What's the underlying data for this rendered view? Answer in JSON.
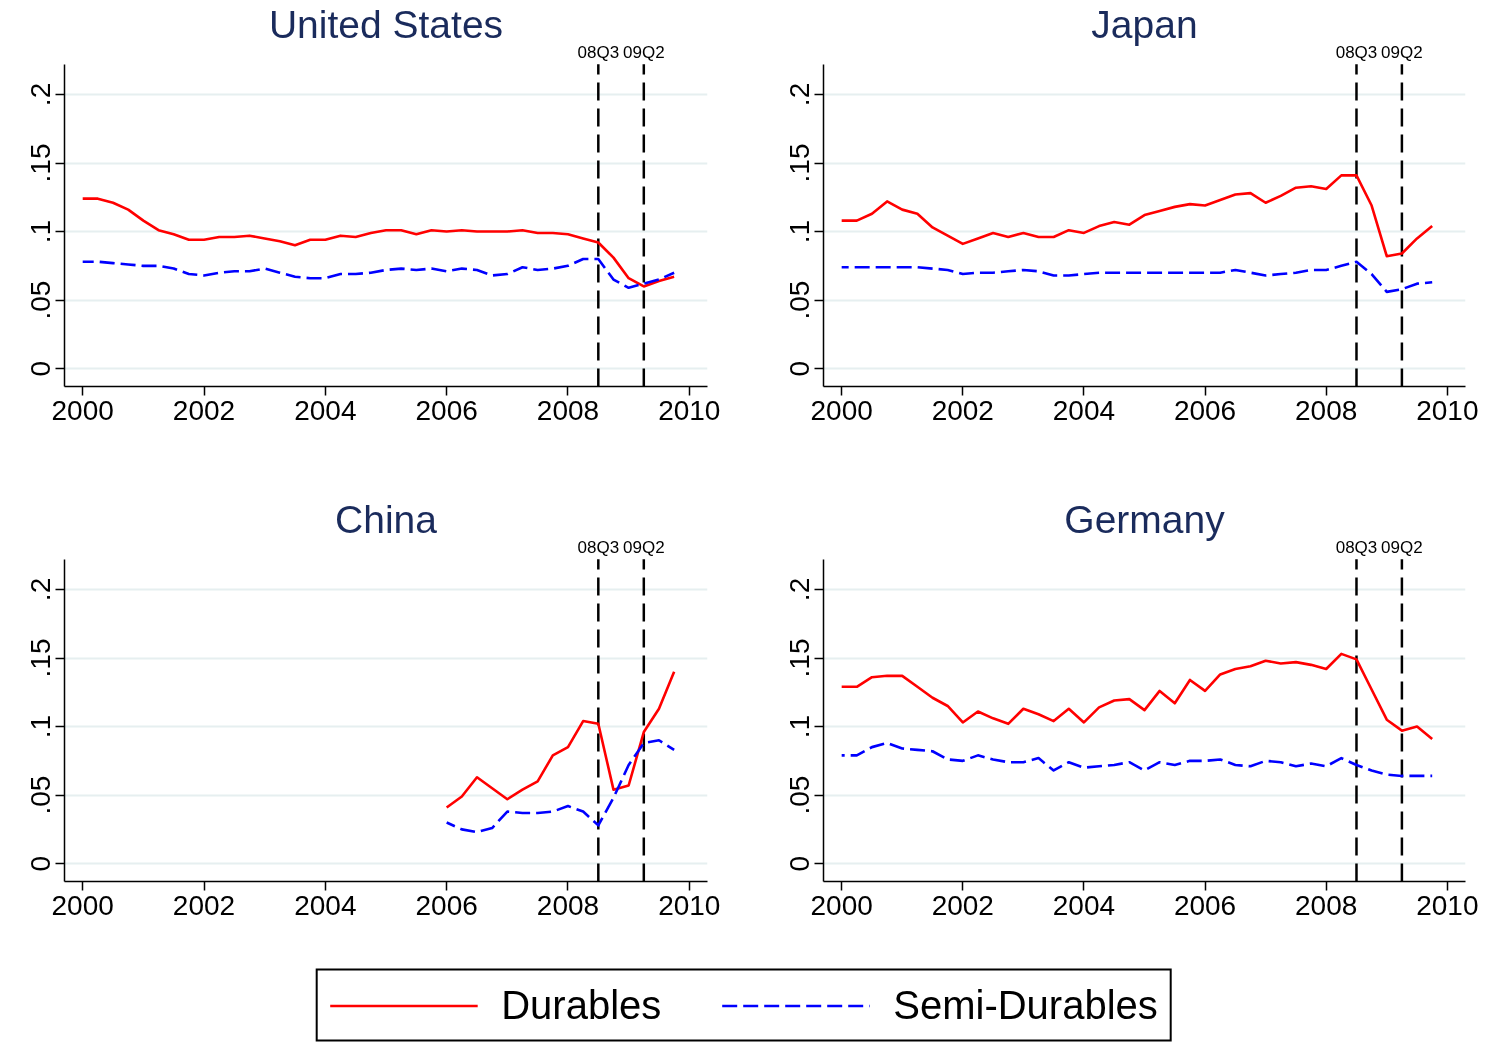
{
  "chart_data": [
    {
      "type": "line",
      "title": "United States",
      "x": [
        2000,
        2000.25,
        2000.5,
        2000.75,
        2001,
        2001.25,
        2001.5,
        2001.75,
        2002,
        2002.25,
        2002.5,
        2002.75,
        2003,
        2003.25,
        2003.5,
        2003.75,
        2004,
        2004.25,
        2004.5,
        2004.75,
        2005,
        2005.25,
        2005.5,
        2005.75,
        2006,
        2006.25,
        2006.5,
        2006.75,
        2007,
        2007.25,
        2007.5,
        2007.75,
        2008,
        2008.25,
        2008.5,
        2008.75,
        2009,
        2009.25,
        2009.5,
        2009.75
      ],
      "series": [
        {
          "color": "#ff0000",
          "line_style": "solid",
          "values": [
            0.124,
            0.124,
            0.121,
            0.116,
            0.108,
            0.101,
            0.098,
            0.094,
            0.094,
            0.096,
            0.096,
            0.097,
            0.095,
            0.093,
            0.09,
            0.094,
            0.094,
            0.097,
            0.096,
            0.099,
            0.101,
            0.101,
            0.098,
            0.101,
            0.1,
            0.101,
            0.1,
            0.1,
            0.1,
            0.101,
            0.099,
            0.099,
            0.098,
            0.095,
            0.092,
            0.081,
            0.066,
            0.06,
            0.064,
            0.067
          ]
        },
        {
          "color": "#0000ff",
          "line_style": "dashed",
          "values": [
            0.078,
            0.078,
            0.077,
            0.076,
            0.075,
            0.075,
            0.073,
            0.069,
            0.068,
            0.07,
            0.071,
            0.071,
            0.073,
            0.07,
            0.067,
            0.066,
            0.066,
            0.069,
            0.069,
            0.07,
            0.072,
            0.073,
            0.072,
            0.073,
            0.071,
            0.073,
            0.072,
            0.068,
            0.069,
            0.074,
            0.072,
            0.073,
            0.075,
            0.08,
            0.08,
            0.065,
            0.059,
            0.062,
            0.065,
            0.07
          ]
        }
      ],
      "xlim": [
        1999.7,
        2010.3
      ],
      "xticks": [
        2000,
        2002,
        2004,
        2006,
        2008,
        2010
      ],
      "ylim": [
        -0.013,
        0.222
      ],
      "yticks": [
        {
          "value": 0,
          "label": "0"
        },
        {
          "value": 0.05,
          "label": ".05"
        },
        {
          "value": 0.1,
          "label": ".1"
        },
        {
          "value": 0.15,
          "label": ".15"
        },
        {
          "value": 0.2,
          "label": ".2"
        }
      ],
      "grid": "y",
      "ref_lines": [
        {
          "axis": "x",
          "value": 2008.5,
          "label": "08Q3",
          "color": "#000000",
          "line_style": "dashed"
        },
        {
          "axis": "x",
          "value": 2009.25,
          "label": "09Q2",
          "color": "#000000",
          "line_style": "dashed"
        }
      ]
    },
    {
      "type": "line",
      "title": "Japan",
      "x": [
        2000,
        2000.25,
        2000.5,
        2000.75,
        2001,
        2001.25,
        2001.5,
        2001.75,
        2002,
        2002.25,
        2002.5,
        2002.75,
        2003,
        2003.25,
        2003.5,
        2003.75,
        2004,
        2004.25,
        2004.5,
        2004.75,
        2005,
        2005.25,
        2005.5,
        2005.75,
        2006,
        2006.25,
        2006.5,
        2006.75,
        2007,
        2007.25,
        2007.5,
        2007.75,
        2008,
        2008.25,
        2008.5,
        2008.75,
        2009,
        2009.25,
        2009.5,
        2009.75
      ],
      "series": [
        {
          "color": "#ff0000",
          "line_style": "solid",
          "values": [
            0.108,
            0.108,
            0.113,
            0.122,
            0.116,
            0.113,
            0.103,
            0.097,
            0.091,
            0.095,
            0.099,
            0.096,
            0.099,
            0.096,
            0.096,
            0.101,
            0.099,
            0.104,
            0.107,
            0.105,
            0.112,
            0.115,
            0.118,
            0.12,
            0.119,
            0.123,
            0.127,
            0.128,
            0.121,
            0.126,
            0.132,
            0.133,
            0.131,
            0.141,
            0.141,
            0.119,
            0.082,
            0.084,
            0.095,
            0.104
          ]
        },
        {
          "color": "#0000ff",
          "line_style": "dashed",
          "values": [
            0.074,
            0.074,
            0.074,
            0.074,
            0.074,
            0.074,
            0.073,
            0.072,
            0.069,
            0.07,
            0.07,
            0.071,
            0.072,
            0.071,
            0.068,
            0.068,
            0.069,
            0.07,
            0.07,
            0.07,
            0.07,
            0.07,
            0.07,
            0.07,
            0.07,
            0.07,
            0.072,
            0.07,
            0.068,
            0.069,
            0.07,
            0.072,
            0.072,
            0.075,
            0.078,
            0.069,
            0.056,
            0.058,
            0.062,
            0.063
          ]
        }
      ],
      "xlim": [
        1999.7,
        2010.3
      ],
      "xticks": [
        2000,
        2002,
        2004,
        2006,
        2008,
        2010
      ],
      "ylim": [
        -0.013,
        0.222
      ],
      "yticks": [
        {
          "value": 0,
          "label": "0"
        },
        {
          "value": 0.05,
          "label": ".05"
        },
        {
          "value": 0.1,
          "label": ".1"
        },
        {
          "value": 0.15,
          "label": ".15"
        },
        {
          "value": 0.2,
          "label": ".2"
        }
      ],
      "grid": "y",
      "ref_lines": [
        {
          "axis": "x",
          "value": 2008.5,
          "label": "08Q3",
          "color": "#000000",
          "line_style": "dashed"
        },
        {
          "axis": "x",
          "value": 2009.25,
          "label": "09Q2",
          "color": "#000000",
          "line_style": "dashed"
        }
      ]
    },
    {
      "type": "line",
      "title": "China",
      "x": [
        2006,
        2006.25,
        2006.5,
        2006.75,
        2007,
        2007.25,
        2007.5,
        2007.75,
        2008,
        2008.25,
        2008.5,
        2008.75,
        2009,
        2009.25,
        2009.5,
        2009.75
      ],
      "series": [
        {
          "color": "#ff0000",
          "line_style": "solid",
          "values": [
            0.041,
            0.049,
            0.063,
            0.055,
            0.047,
            0.054,
            0.06,
            0.079,
            0.085,
            0.104,
            0.102,
            0.054,
            0.057,
            0.096,
            0.113,
            0.14
          ]
        },
        {
          "color": "#0000ff",
          "line_style": "dashed",
          "values": [
            0.03,
            0.025,
            0.023,
            0.026,
            0.038,
            0.037,
            0.037,
            0.038,
            0.042,
            0.038,
            0.028,
            0.048,
            0.072,
            0.088,
            0.09,
            0.083
          ]
        }
      ],
      "xlim": [
        1999.7,
        2010.3
      ],
      "xticks": [
        2000,
        2002,
        2004,
        2006,
        2008,
        2010
      ],
      "ylim": [
        -0.013,
        0.222
      ],
      "yticks": [
        {
          "value": 0,
          "label": "0"
        },
        {
          "value": 0.05,
          "label": ".05"
        },
        {
          "value": 0.1,
          "label": ".1"
        },
        {
          "value": 0.15,
          "label": ".15"
        },
        {
          "value": 0.2,
          "label": ".2"
        }
      ],
      "grid": "y",
      "ref_lines": [
        {
          "axis": "x",
          "value": 2008.5,
          "label": "08Q3",
          "color": "#000000",
          "line_style": "dashed"
        },
        {
          "axis": "x",
          "value": 2009.25,
          "label": "09Q2",
          "color": "#000000",
          "line_style": "dashed"
        }
      ]
    },
    {
      "type": "line",
      "title": "Germany",
      "x": [
        2000,
        2000.25,
        2000.5,
        2000.75,
        2001,
        2001.25,
        2001.5,
        2001.75,
        2002,
        2002.25,
        2002.5,
        2002.75,
        2003,
        2003.25,
        2003.5,
        2003.75,
        2004,
        2004.25,
        2004.5,
        2004.75,
        2005,
        2005.25,
        2005.5,
        2005.75,
        2006,
        2006.25,
        2006.5,
        2006.75,
        2007,
        2007.25,
        2007.5,
        2007.75,
        2008,
        2008.25,
        2008.5,
        2008.75,
        2009,
        2009.25,
        2009.5,
        2009.75
      ],
      "series": [
        {
          "name": "Durables",
          "color": "#ff0000",
          "line_style": "solid",
          "values": [
            0.129,
            0.129,
            0.136,
            0.137,
            0.137,
            0.129,
            0.121,
            0.115,
            0.103,
            0.111,
            0.106,
            0.102,
            0.113,
            0.109,
            0.104,
            0.113,
            0.103,
            0.114,
            0.119,
            0.12,
            0.112,
            0.126,
            0.117,
            0.134,
            0.126,
            0.138,
            0.142,
            0.144,
            0.148,
            0.146,
            0.147,
            0.145,
            0.142,
            0.153,
            0.149,
            0.127,
            0.105,
            0.097,
            0.1,
            0.091
          ]
        },
        {
          "name": "Semi-Durables",
          "color": "#0000ff",
          "line_style": "dashed",
          "values": [
            0.079,
            0.079,
            0.085,
            0.088,
            0.084,
            0.083,
            0.082,
            0.076,
            0.075,
            0.079,
            0.076,
            0.074,
            0.074,
            0.077,
            0.068,
            0.074,
            0.07,
            0.071,
            0.072,
            0.074,
            0.068,
            0.074,
            0.072,
            0.075,
            0.075,
            0.076,
            0.072,
            0.071,
            0.075,
            0.074,
            0.071,
            0.073,
            0.071,
            0.077,
            0.072,
            0.068,
            0.065,
            0.064,
            0.064,
            0.064
          ]
        }
      ],
      "xlim": [
        1999.7,
        2010.3
      ],
      "xticks": [
        2000,
        2002,
        2004,
        2006,
        2008,
        2010
      ],
      "ylim": [
        -0.013,
        0.222
      ],
      "yticks": [
        {
          "value": 0,
          "label": "0"
        },
        {
          "value": 0.05,
          "label": ".05"
        },
        {
          "value": 0.1,
          "label": ".1"
        },
        {
          "value": 0.15,
          "label": ".15"
        },
        {
          "value": 0.2,
          "label": ".2"
        }
      ],
      "grid": "y",
      "legend": "bottom",
      "ref_lines": [
        {
          "axis": "x",
          "value": 2008.5,
          "label": "08Q3",
          "color": "#000000",
          "line_style": "dashed"
        },
        {
          "axis": "x",
          "value": 2009.25,
          "label": "09Q2",
          "color": "#000000",
          "line_style": "dashed"
        }
      ]
    }
  ]
}
